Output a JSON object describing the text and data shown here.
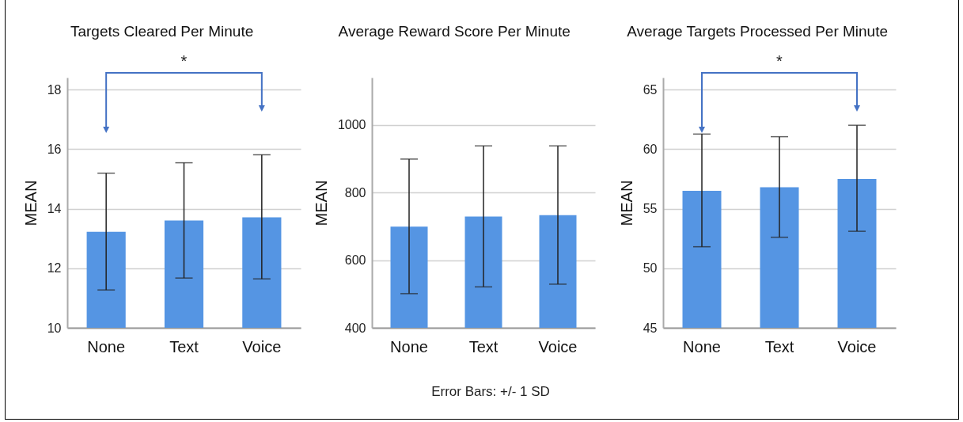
{
  "chart_data": [
    {
      "type": "bar",
      "title": "Targets Cleared Per Minute",
      "ylabel": "MEAN",
      "categories": [
        "None",
        "Text",
        "Voice"
      ],
      "values": [
        13.22,
        13.6,
        13.71
      ],
      "errors": [
        [
          11.27,
          15.19
        ],
        [
          11.67,
          15.54
        ],
        [
          11.64,
          15.81
        ]
      ],
      "color": "#5595e3",
      "ylim": [
        10,
        18.4
      ],
      "yticks": [
        10,
        12,
        14,
        16,
        18
      ],
      "grid": "y",
      "annotations": [
        "*"
      ]
    },
    {
      "type": "bar",
      "title": "Average Reward Score Per Minute",
      "ylabel": "MEAN",
      "categories": [
        "None",
        "Text",
        "Voice"
      ],
      "values": [
        699,
        729,
        733
      ],
      "errors": [
        [
          501,
          899
        ],
        [
          521,
          938
        ],
        [
          529,
          938
        ]
      ],
      "color": "#5595e3",
      "ylim": [
        400,
        1140
      ],
      "yticks": [
        400,
        600,
        800,
        1000
      ],
      "grid": "y"
    },
    {
      "type": "bar",
      "title": "Average Targets Processed Per Minute",
      "ylabel": "MEAN",
      "categories": [
        "None",
        "Text",
        "Voice"
      ],
      "values": [
        56.5,
        56.8,
        57.5
      ],
      "errors": [
        [
          51.8,
          61.26
        ],
        [
          52.6,
          61.04
        ],
        [
          53.1,
          62.0
        ]
      ],
      "color": "#5595e3",
      "ylim": [
        45,
        66
      ],
      "yticks": [
        45,
        50,
        55,
        60,
        65
      ],
      "grid": "y",
      "annotations": [
        "*"
      ]
    },
    {
      "type": "other",
      "annotations": [
        "Error Bars: +/- 1 SD"
      ]
    }
  ]
}
